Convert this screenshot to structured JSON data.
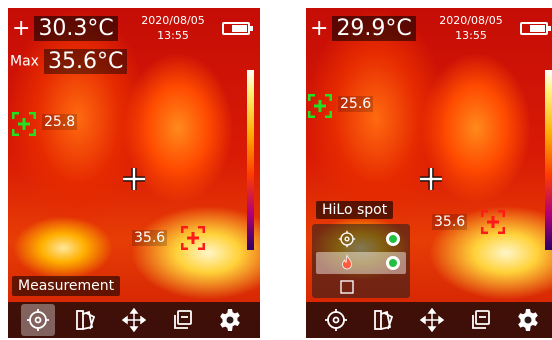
{
  "left": {
    "center_temp": "30.3°C",
    "date": "2020/08/05",
    "time": "13:55",
    "max_label": "Max",
    "max_temp": "35.6°C",
    "low_spot_value": "25.8",
    "high_spot_value": "35.6",
    "mode_label": "Measurement",
    "battery_level": 0.7
  },
  "right": {
    "center_temp": "29.9°C",
    "date": "2020/08/05",
    "time": "13:55",
    "low_spot_value": "25.6",
    "high_spot_value": "35.6",
    "menu_title": "HiLo spot",
    "menu_options": [
      {
        "icon": "low-spot-icon",
        "enabled": true,
        "selected": false
      },
      {
        "icon": "flame-icon",
        "enabled": true,
        "selected": true
      },
      {
        "icon": "area-box-icon",
        "enabled": false,
        "selected": false
      }
    ],
    "battery_level": 0.7
  },
  "toolbar": {
    "items": [
      "measurement-icon",
      "palette-icon",
      "move-icon",
      "image-mode-icon",
      "settings-icon"
    ],
    "active_left": "measurement-icon"
  },
  "colors": {
    "spot_low": "#22e022",
    "spot_high": "#ff1a1a",
    "radio_on": "#22c040"
  }
}
